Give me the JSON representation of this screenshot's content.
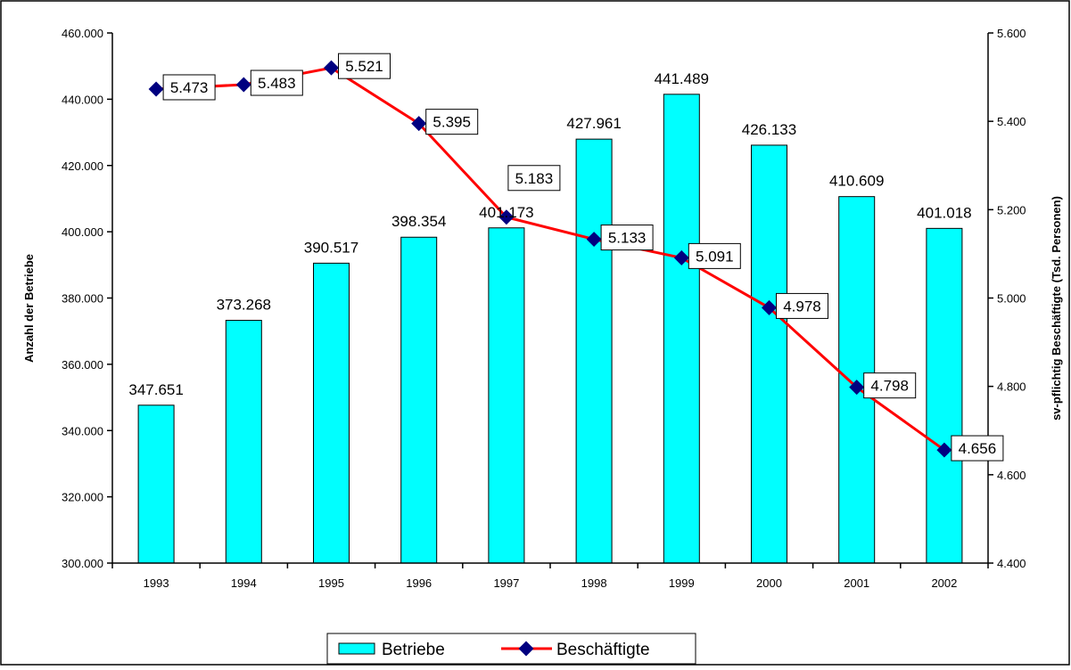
{
  "chart_data": {
    "type": "bar",
    "categories": [
      "1993",
      "1994",
      "1995",
      "1996",
      "1997",
      "1998",
      "1999",
      "2000",
      "2001",
      "2002"
    ],
    "series": [
      {
        "name": "Betriebe",
        "type": "bar",
        "axis": "left",
        "color": "#00FFFF",
        "values": [
          347651,
          373268,
          390517,
          398354,
          401173,
          427961,
          441489,
          426133,
          410609,
          401018
        ],
        "labels": [
          "347.651",
          "373.268",
          "390.517",
          "398.354",
          "401.173",
          "427.961",
          "441.489",
          "426.133",
          "410.609",
          "401.018"
        ]
      },
      {
        "name": "Beschäftigte",
        "type": "line",
        "axis": "right",
        "color": "#FF0000",
        "marker_color": "#000080",
        "values": [
          5473,
          5483,
          5521,
          5395,
          5183,
          5133,
          5091,
          4978,
          4798,
          4656
        ],
        "labels": [
          "5.473",
          "5.483",
          "5.521",
          "5.395",
          "5.183",
          "5.133",
          "5.091",
          "4.978",
          "4.798",
          "4.656"
        ]
      }
    ],
    "ylabel": "Anzahl der Betriebe",
    "y2label": "sv-pflichtig Beschäftigte (Tsd. Personen)",
    "ylim": [
      300000,
      460000
    ],
    "y2lim": [
      4400,
      5600
    ],
    "yticks": [
      "300.000",
      "320.000",
      "340.000",
      "360.000",
      "380.000",
      "400.000",
      "420.000",
      "440.000",
      "460.000"
    ],
    "y2ticks": [
      "4.400",
      "4.600",
      "4.800",
      "5.000",
      "5.200",
      "5.400",
      "5.600"
    ],
    "legend_position": "bottom",
    "grid": false
  }
}
